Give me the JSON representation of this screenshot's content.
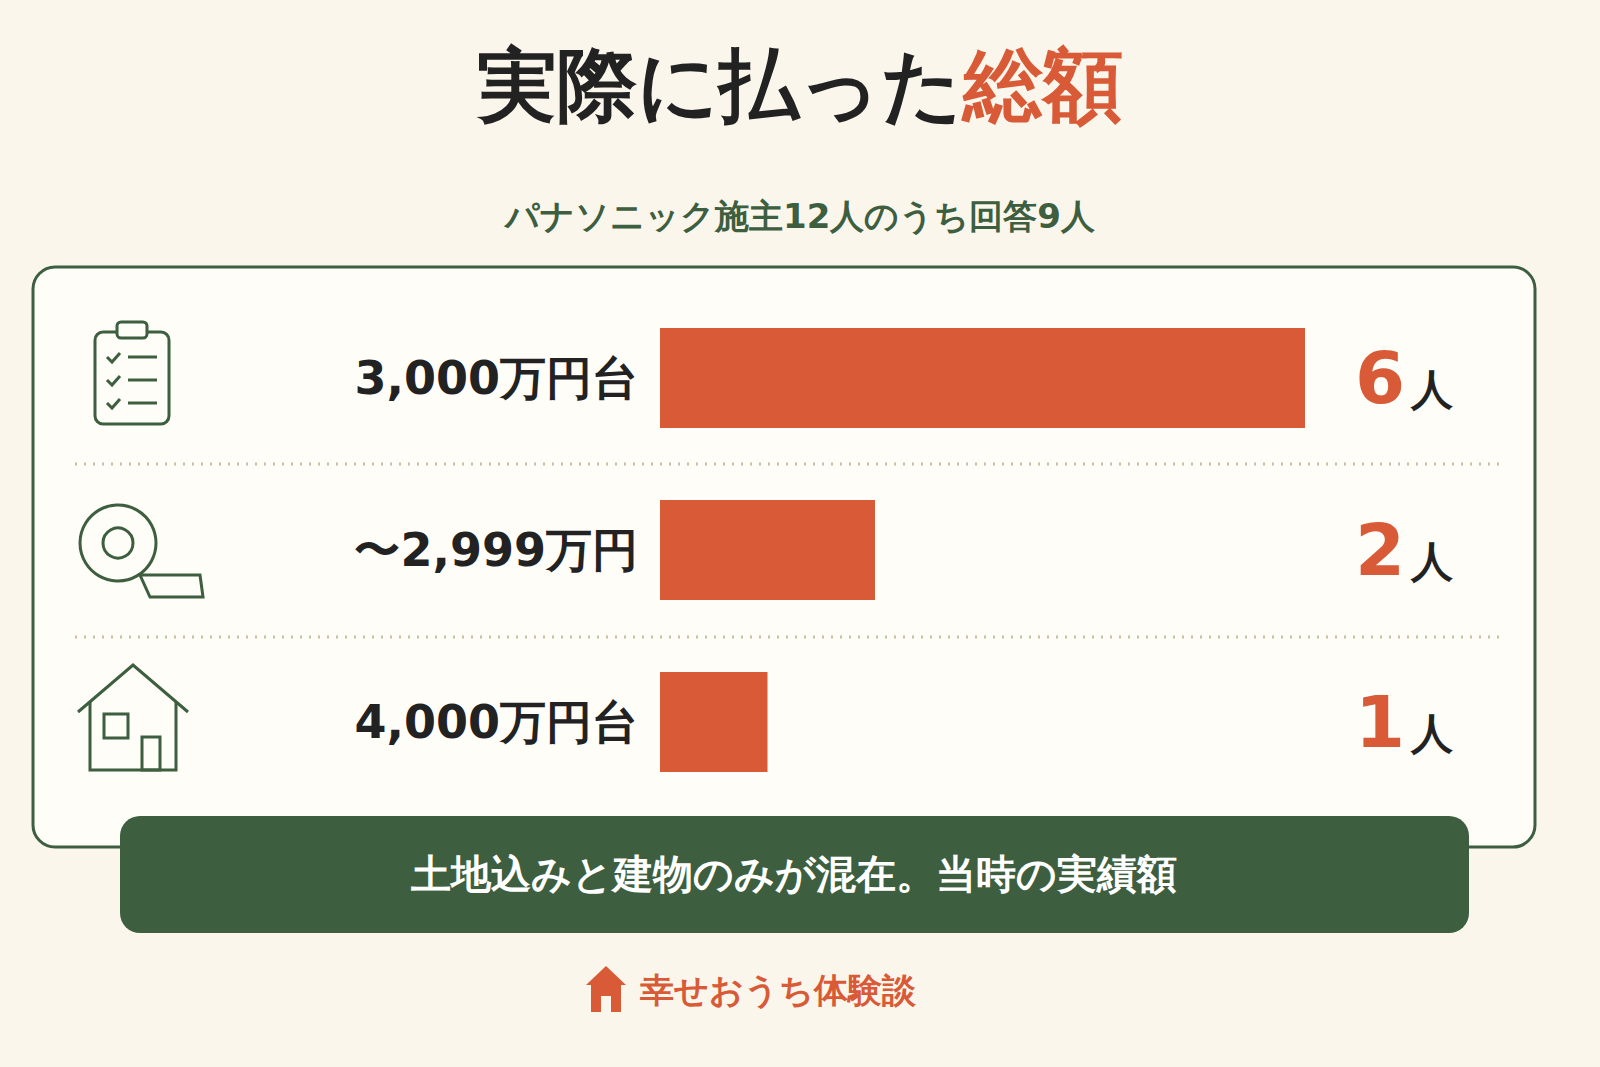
{
  "chart_data": {
    "type": "bar",
    "orientation": "horizontal",
    "title": "実際に払った総額",
    "subtitle": "パナソニック施主12人のうち回答9人",
    "categories": [
      "3,000万円台",
      "〜2,999万円",
      "4,000万円台"
    ],
    "values": [
      6,
      2,
      1
    ],
    "value_labels": [
      "6人",
      "2人",
      "1人"
    ],
    "data_labels": true,
    "color": "#d95a36",
    "xlim": [
      0,
      6
    ],
    "tick_labels": "y",
    "grid": false,
    "annotations": [
      "土地込みと建物のみが混在。当時の実績額"
    ],
    "credit": "幸せおうち体験談"
  }
}
